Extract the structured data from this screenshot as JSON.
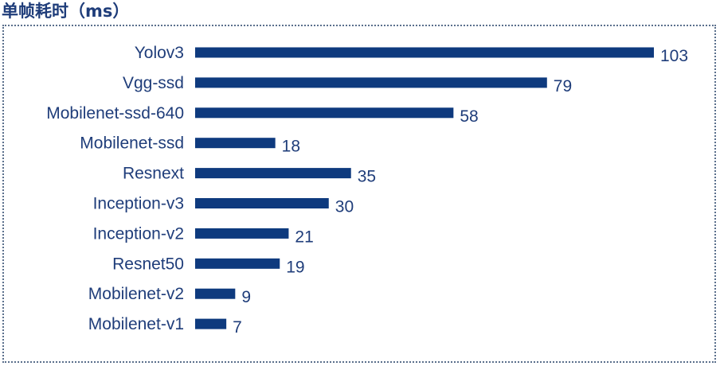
{
  "title": "单帧耗时（ms）",
  "colors": {
    "bar": "#0e3a7e",
    "text": "#1f3d7a",
    "frame": "#5a6f8c"
  },
  "chart_data": {
    "type": "bar",
    "orientation": "horizontal",
    "title": "单帧耗时（ms）",
    "categories": [
      "Yolov3",
      "Vgg-ssd",
      "Mobilenet-ssd-640",
      "Mobilenet-ssd",
      "Resnext",
      "Inception-v3",
      "Inception-v2",
      "Resnet50",
      "Mobilenet-v2",
      "Mobilenet-v1"
    ],
    "values": [
      103,
      79,
      58,
      18,
      35,
      30,
      21,
      19,
      9,
      7
    ],
    "data_labels": [
      "103",
      "79",
      "58",
      "18",
      "35",
      "30",
      "21",
      "19",
      "9",
      "7"
    ],
    "xlim": [
      0,
      103
    ],
    "grid": false,
    "legend": "none"
  }
}
